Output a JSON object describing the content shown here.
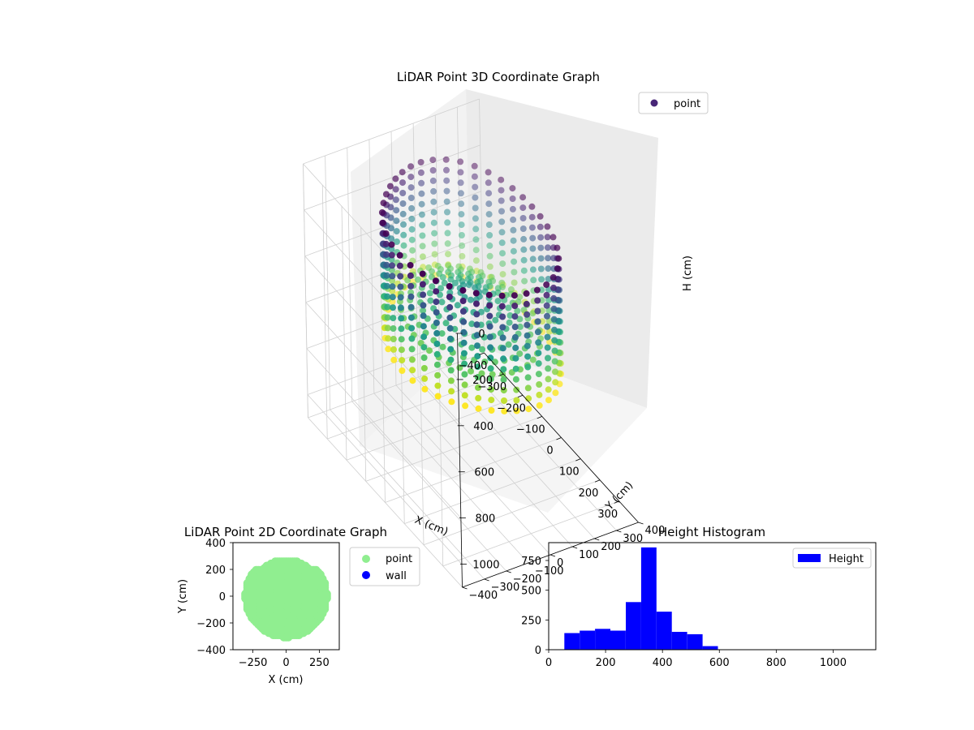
{
  "chart_data": [
    {
      "type": "scatter3d",
      "title": "LiDAR Point 3D Coordinate Graph",
      "xlabel": "X (cm)",
      "ylabel": "Y (cm)",
      "zlabel": "H (cm)",
      "xlim": [
        -400,
        400
      ],
      "ylim": [
        -400,
        400
      ],
      "zlim": [
        1100,
        0
      ],
      "x_ticks": [
        -400,
        -300,
        -200,
        -100,
        0,
        100,
        200,
        300
      ],
      "y_ticks": [
        -400,
        -300,
        -200,
        -100,
        0,
        100,
        200,
        300,
        400
      ],
      "z_ticks": [
        0,
        200,
        400,
        600,
        800,
        1000
      ],
      "grid": true,
      "legend": {
        "placement": "top-right",
        "entries": [
          {
            "label": "point",
            "color": "#482677"
          }
        ]
      },
      "colormap": "viridis",
      "series": [
        {
          "name": "point",
          "shape": "cylindrical-wall",
          "radius": 300,
          "h_range": [
            60,
            560
          ],
          "h_rings": 12,
          "points_per_ring": 40
        },
        {
          "name": "point",
          "shape": "dome-interior",
          "radius": 240,
          "h_range": [
            330,
            450
          ],
          "rings": 7
        }
      ]
    },
    {
      "type": "scatter",
      "title": "LiDAR Point 2D Coordinate Graph",
      "xlabel": "X (cm)",
      "ylabel": "Y (cm)",
      "xlim": [
        -400,
        400
      ],
      "ylim": [
        -400,
        400
      ],
      "x_ticks": [
        -250,
        0,
        250
      ],
      "y_ticks": [
        -400,
        -200,
        0,
        200,
        400
      ],
      "legend": {
        "placement": "outside-right",
        "entries": [
          {
            "label": "point",
            "color": "#90ee90"
          },
          {
            "label": "wall",
            "color": "#0000ff"
          }
        ]
      },
      "series": [
        {
          "name": "point",
          "color": "#90ee90",
          "region": "disc",
          "radius": 270,
          "holes": [
            [
              -60,
              -140,
              45,
              18
            ],
            [
              90,
              -160,
              40,
              15
            ]
          ]
        },
        {
          "name": "wall",
          "color": "#0000ff",
          "points": []
        }
      ]
    },
    {
      "type": "bar",
      "title": "Height Histogram",
      "xlabel": "",
      "ylabel": "",
      "xlim": [
        0,
        1150
      ],
      "ylim": [
        0,
        900
      ],
      "x_ticks": [
        0,
        200,
        400,
        600,
        800,
        1000
      ],
      "y_ticks": [
        0,
        250,
        500,
        750
      ],
      "legend": {
        "placement": "top-right",
        "entries": [
          {
            "label": "Height",
            "color": "#0000ff"
          }
        ]
      },
      "series": [
        {
          "name": "Height",
          "color": "#0000ff",
          "bin_edges": [
            55,
            109,
            163,
            217,
            271,
            325,
            379,
            433,
            487,
            541,
            595,
            649,
            703,
            757,
            811,
            865,
            919,
            973,
            1027,
            1081,
            1135
          ],
          "values": [
            140,
            160,
            175,
            160,
            400,
            860,
            320,
            150,
            130,
            30,
            0,
            0,
            0,
            0,
            0,
            0,
            0,
            0,
            0,
            0
          ]
        }
      ]
    }
  ]
}
